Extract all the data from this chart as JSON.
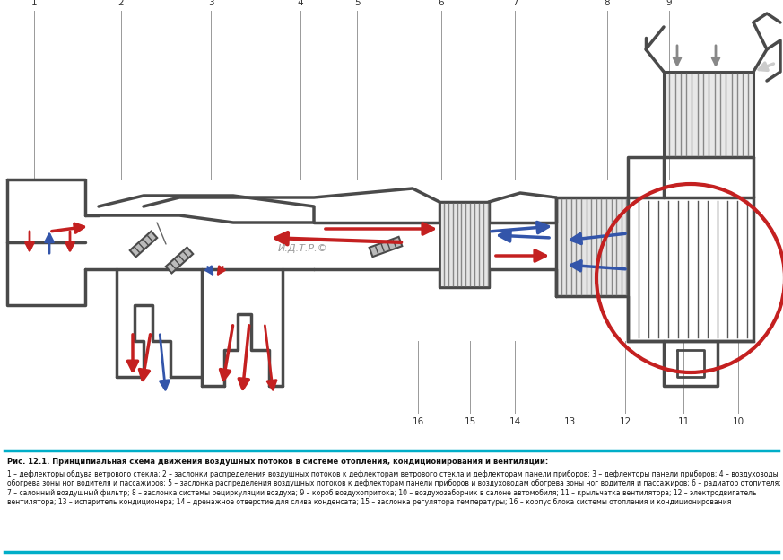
{
  "bg_color": "#ffffff",
  "teal": "#00aec8",
  "dc": "#4a4a4a",
  "red": "#c42020",
  "blue": "#3355aa",
  "gray_arrow": "#aaaaaa",
  "watermark": "И.Д.Т.Р.©",
  "title": "Рис. 12.1. Принципиальная схема движения воздушных потоков в системе отопления, кондиционирования и вентиляции:",
  "caption": "1 – дефлекторы обдува ветрового стекла; 2 – заслонки распределения воздушных потоков к дефлекторам ветрового стекла и дефлекторам панели приборов; 3 – дефлекторы панели приборов; 4 – воздуховоды обогрева зоны ног водителя и пассажиров; 5 – заслонка распределения воздушных потоков к дефлекторам панели приборов и воздуховодам обогрева зоны ног водителя и пассажиров; 6 – радиатор отопителя; 7 – салонный воздушный фильтр; 8 – заслонка системы рециркуляции воздуха; 9 – короб воздухопритока; 10 – воздухозаборник в салоне автомобиля; 11 – крыльчатка вентилятора; 12 – электродвигатель вентилятора; 13 – испаритель кондиционера; 14 – дренажное отверстие для слива конденсата; 15 – заслонка регулятора температуры; 16 – корпус блока системы отопления и кондиционирования"
}
